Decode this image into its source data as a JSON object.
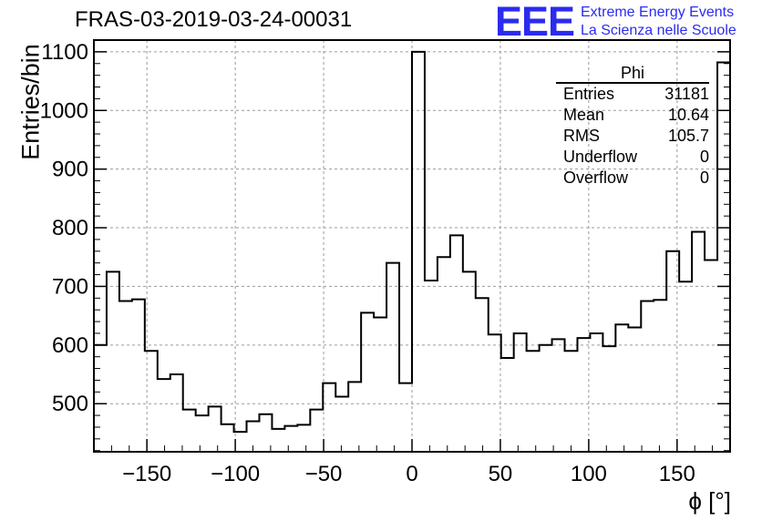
{
  "header": {
    "title": "FRAS-03-2019-03-24-00031",
    "logo_text": "EEE",
    "logo_line1": "Extreme Energy Events",
    "logo_line2": "La Scienza nelle Scuole"
  },
  "colors": {
    "logo": "#2b2bf0",
    "line": "#000000",
    "grid": "#9a9a9a"
  },
  "stats": {
    "name": "Phi",
    "rows": [
      {
        "label": "Entries",
        "value": "31181"
      },
      {
        "label": "Mean",
        "value": "10.64"
      },
      {
        "label": "RMS",
        "value": "105.7"
      },
      {
        "label": "Underflow",
        "value": "0"
      },
      {
        "label": "Overflow",
        "value": "0"
      }
    ]
  },
  "chart_data": {
    "type": "histogram",
    "title": "FRAS-03-2019-03-24-00031",
    "xlabel": "ϕ [°]",
    "ylabel": "Entries/bin",
    "xlim": [
      -180,
      180
    ],
    "ylim": [
      418,
      1120
    ],
    "bin_width": 7.2,
    "xticks": [
      -150,
      -100,
      -50,
      0,
      50,
      100,
      150
    ],
    "xtick_labels": [
      "−150",
      "−100",
      "−50",
      "0",
      "50",
      "100",
      "150"
    ],
    "yticks": [
      500,
      600,
      700,
      800,
      900,
      1000,
      1100
    ],
    "grid": true,
    "values": [
      600,
      725,
      675,
      678,
      590,
      542,
      550,
      490,
      480,
      495,
      465,
      452,
      470,
      482,
      457,
      462,
      464,
      490,
      535,
      512,
      537,
      655,
      647,
      740,
      535,
      1100,
      710,
      750,
      787,
      725,
      680,
      618,
      578,
      620,
      590,
      600,
      610,
      590,
      612,
      620,
      598,
      635,
      630,
      675,
      677,
      760,
      708,
      793,
      745,
      1082
    ]
  }
}
